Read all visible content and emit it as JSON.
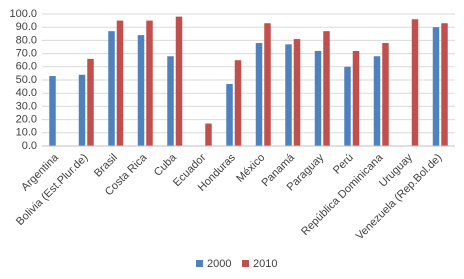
{
  "chart_data": {
    "type": "bar",
    "categories": [
      "Argentina",
      "Bolivia (Est.Plur.de)",
      "Brasil",
      "Costa Rica",
      "Cuba",
      "Ecuador",
      "Honduras",
      "México",
      "Panamá",
      "Paraguay",
      "Perú",
      "República Dominicana",
      "Uruguay",
      "Venezuela (Rep.Bol.de)"
    ],
    "series": [
      {
        "name": "2000",
        "color": "#4f81bd",
        "values": [
          53,
          54,
          87,
          84,
          68,
          null,
          47,
          78,
          77,
          72,
          60,
          68,
          null,
          90
        ]
      },
      {
        "name": "2010",
        "color": "#c0504d",
        "values": [
          null,
          66,
          95,
          95,
          98,
          17,
          65,
          93,
          81,
          87,
          72,
          78,
          96,
          93
        ]
      }
    ],
    "ylim": [
      0,
      100
    ],
    "yticks": [
      {
        "value": 0,
        "label": "0.0"
      },
      {
        "value": 10,
        "label": "10.0"
      },
      {
        "value": 20,
        "label": "20.0"
      },
      {
        "value": 30,
        "label": "30.0"
      },
      {
        "value": 40,
        "label": "40.0"
      },
      {
        "value": 50,
        "label": "50.0"
      },
      {
        "value": 60,
        "label": "60.0"
      },
      {
        "value": 70,
        "label": "70.0"
      },
      {
        "value": 80,
        "label": "80.0"
      },
      {
        "value": 90,
        "label": "90.0"
      },
      {
        "value": 100,
        "label": "100.0"
      }
    ],
    "grid": true,
    "legend": "bottom"
  }
}
